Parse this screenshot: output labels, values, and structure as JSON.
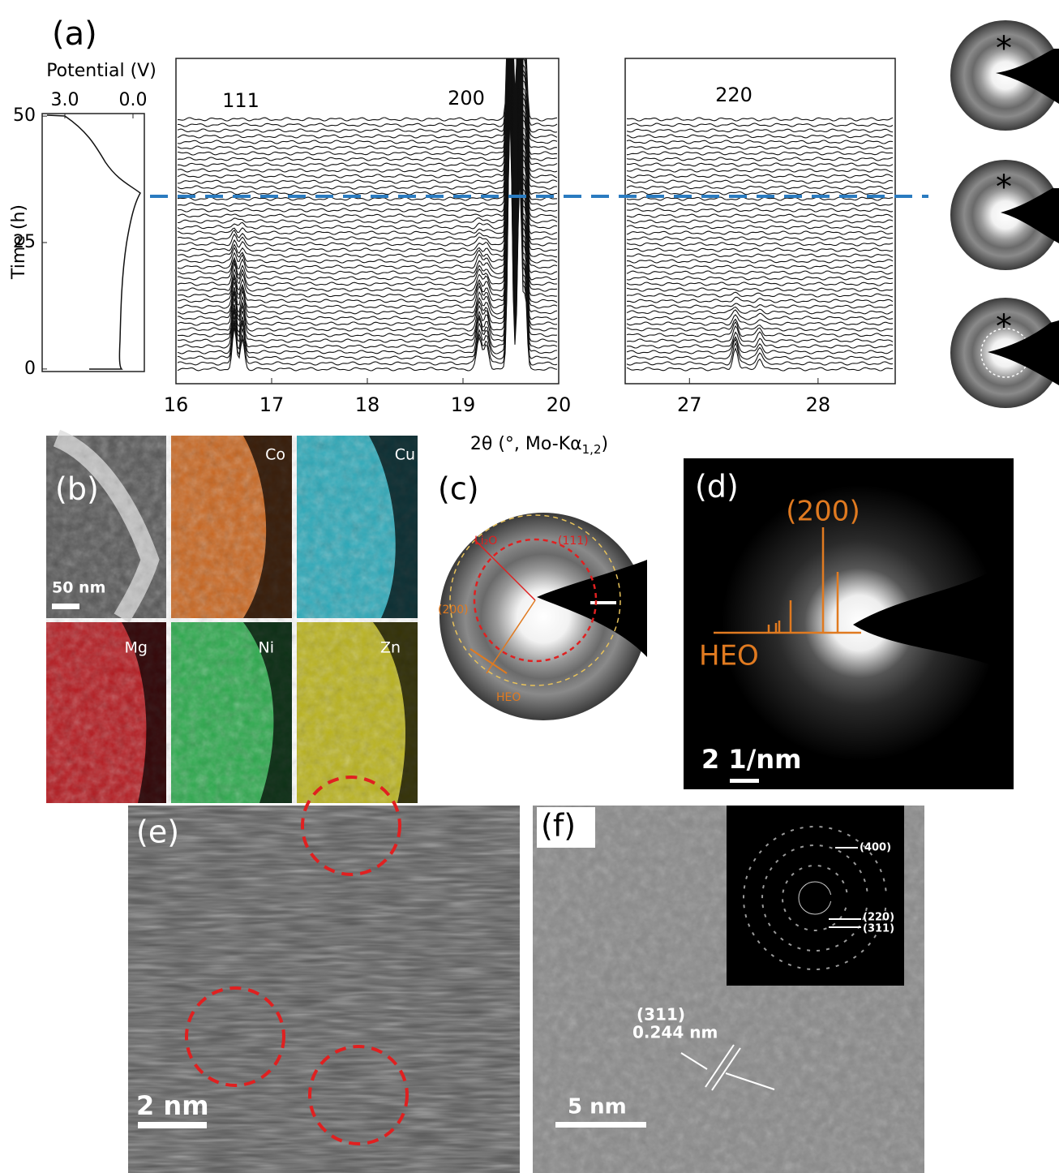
{
  "panel_a": {
    "label": "(a)",
    "potential": {
      "title": "Potential (V)",
      "xlim": [
        4.0,
        -0.5
      ],
      "xticks": [
        {
          "value": 3.0,
          "label": "3.0"
        },
        {
          "value": 0.0,
          "label": "0.0"
        }
      ],
      "ylabel": "Time (h)",
      "ylim": [
        -0.5,
        50.5
      ],
      "yticks": [
        50,
        25,
        0
      ]
    },
    "xrd": {
      "xlabel_main": "2θ (°, Mo-Kα",
      "xlabel_sub": "1,2",
      "xlabel_end": ")",
      "plots": [
        {
          "xlim": [
            16,
            20
          ],
          "xticks": [
            16,
            17,
            18,
            19,
            20
          ],
          "peak_labels": [
            "111",
            "200"
          ]
        },
        {
          "xlim": [
            26.5,
            28.6
          ],
          "xticks": [
            27,
            28
          ],
          "peak_labels": [
            "220"
          ]
        }
      ]
    },
    "saed_marks": [
      "*",
      "*",
      "*"
    ]
  },
  "panel_b": {
    "label": "(b)",
    "scale_bar": "50 nm",
    "elements": [
      "Co",
      "Cu",
      "Mg",
      "Ni",
      "Zn"
    ]
  },
  "panel_c": {
    "label": "(c)",
    "li2o": "Li₂O",
    "hkl_111": "(111)",
    "hkl_200": "(200)",
    "heo": "HEO"
  },
  "panel_d": {
    "label": "(d)",
    "hkl": "(200)",
    "phase": "HEO",
    "scale_bar": "2 1/nm"
  },
  "panel_e": {
    "label": "(e)",
    "scale_bar": "2 nm"
  },
  "panel_f": {
    "label": "(f)",
    "inset_labels": [
      "(400)",
      "(220)",
      "(311)"
    ],
    "plane": "(311)",
    "spacing": "0.244 nm",
    "scale_bar": "5 nm"
  }
}
